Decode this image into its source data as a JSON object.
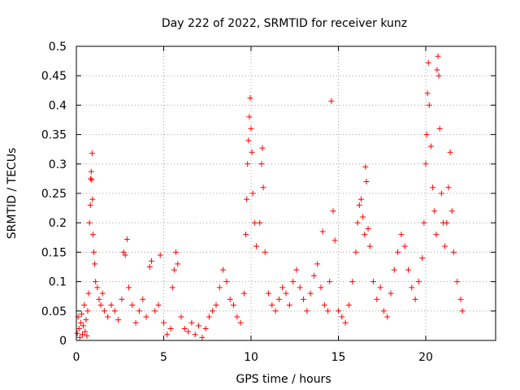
{
  "chart_data": {
    "type": "scatter",
    "title": "Day 222 of 2022, SRMTID for receiver kunz",
    "xlabel": "GPS time / hours",
    "ylabel": "SRMTID / TECUs",
    "xlim": [
      0,
      24
    ],
    "ylim": [
      0,
      0.5
    ],
    "xticks": [
      0,
      5,
      10,
      15,
      20
    ],
    "xtick_labels": [
      "0",
      "5",
      "10",
      "15",
      "20"
    ],
    "yticks": [
      0,
      0.05,
      0.1,
      0.15,
      0.2,
      0.25,
      0.3,
      0.35,
      0.4,
      0.45,
      0.5
    ],
    "ytick_labels": [
      "0",
      "0.05",
      "0.1",
      "0.15",
      "0.2",
      "0.25",
      "0.3",
      "0.35",
      "0.4",
      "0.45",
      "0.5"
    ],
    "grid": true,
    "marker": "+",
    "color": "#ff0000",
    "series": [
      {
        "name": "SRMTID",
        "points": [
          [
            0.05,
            0.012
          ],
          [
            0.1,
            0.04
          ],
          [
            0.15,
            0.02
          ],
          [
            0.2,
            0.005
          ],
          [
            0.25,
            0.03
          ],
          [
            0.3,
            0.045
          ],
          [
            0.35,
            0.01
          ],
          [
            0.4,
            0.025
          ],
          [
            0.45,
            0.06
          ],
          [
            0.5,
            0.015
          ],
          [
            0.55,
            0.035
          ],
          [
            0.6,
            0.008
          ],
          [
            0.65,
            0.05
          ],
          [
            0.7,
            0.08
          ],
          [
            0.75,
            0.2
          ],
          [
            0.8,
            0.23
          ],
          [
            0.82,
            0.275
          ],
          [
            0.85,
            0.287
          ],
          [
            0.88,
            0.273
          ],
          [
            0.9,
            0.318
          ],
          [
            0.92,
            0.24
          ],
          [
            0.95,
            0.18
          ],
          [
            1.0,
            0.15
          ],
          [
            1.05,
            0.13
          ],
          [
            1.1,
            0.1
          ],
          [
            1.2,
            0.09
          ],
          [
            1.3,
            0.07
          ],
          [
            1.4,
            0.06
          ],
          [
            1.5,
            0.08
          ],
          [
            1.6,
            0.05
          ],
          [
            1.8,
            0.04
          ],
          [
            2.0,
            0.06
          ],
          [
            2.2,
            0.05
          ],
          [
            2.4,
            0.035
          ],
          [
            2.6,
            0.07
          ],
          [
            2.7,
            0.15
          ],
          [
            2.8,
            0.145
          ],
          [
            2.9,
            0.172
          ],
          [
            3.0,
            0.09
          ],
          [
            3.2,
            0.06
          ],
          [
            3.4,
            0.03
          ],
          [
            3.6,
            0.05
          ],
          [
            3.8,
            0.07
          ],
          [
            4.0,
            0.04
          ],
          [
            4.2,
            0.125
          ],
          [
            4.3,
            0.135
          ],
          [
            4.5,
            0.05
          ],
          [
            4.7,
            0.06
          ],
          [
            4.8,
            0.145
          ],
          [
            5.0,
            0.03
          ],
          [
            5.2,
            0.01
          ],
          [
            5.4,
            0.02
          ],
          [
            5.5,
            0.09
          ],
          [
            5.6,
            0.12
          ],
          [
            5.7,
            0.15
          ],
          [
            5.8,
            0.13
          ],
          [
            6.0,
            0.04
          ],
          [
            6.2,
            0.02
          ],
          [
            6.4,
            0.015
          ],
          [
            6.6,
            0.03
          ],
          [
            6.8,
            0.01
          ],
          [
            7.0,
            0.025
          ],
          [
            7.2,
            0.005
          ],
          [
            7.4,
            0.02
          ],
          [
            7.6,
            0.04
          ],
          [
            7.8,
            0.05
          ],
          [
            8.0,
            0.06
          ],
          [
            8.2,
            0.09
          ],
          [
            8.4,
            0.12
          ],
          [
            8.6,
            0.1
          ],
          [
            8.8,
            0.07
          ],
          [
            9.0,
            0.06
          ],
          [
            9.2,
            0.04
          ],
          [
            9.4,
            0.03
          ],
          [
            9.6,
            0.08
          ],
          [
            9.7,
            0.18
          ],
          [
            9.75,
            0.24
          ],
          [
            9.8,
            0.3
          ],
          [
            9.85,
            0.34
          ],
          [
            9.9,
            0.38
          ],
          [
            9.95,
            0.412
          ],
          [
            10.0,
            0.36
          ],
          [
            10.05,
            0.32
          ],
          [
            10.1,
            0.25
          ],
          [
            10.2,
            0.2
          ],
          [
            10.3,
            0.16
          ],
          [
            10.5,
            0.2
          ],
          [
            10.6,
            0.3
          ],
          [
            10.65,
            0.327
          ],
          [
            10.7,
            0.26
          ],
          [
            10.8,
            0.15
          ],
          [
            11.0,
            0.08
          ],
          [
            11.2,
            0.06
          ],
          [
            11.4,
            0.05
          ],
          [
            11.6,
            0.07
          ],
          [
            11.8,
            0.09
          ],
          [
            12.0,
            0.08
          ],
          [
            12.2,
            0.06
          ],
          [
            12.4,
            0.1
          ],
          [
            12.6,
            0.12
          ],
          [
            12.8,
            0.09
          ],
          [
            13.0,
            0.07
          ],
          [
            13.2,
            0.05
          ],
          [
            13.4,
            0.08
          ],
          [
            13.6,
            0.11
          ],
          [
            13.8,
            0.13
          ],
          [
            14.0,
            0.09
          ],
          [
            14.1,
            0.185
          ],
          [
            14.2,
            0.06
          ],
          [
            14.4,
            0.05
          ],
          [
            14.5,
            0.1
          ],
          [
            14.6,
            0.407
          ],
          [
            14.7,
            0.22
          ],
          [
            14.8,
            0.17
          ],
          [
            15.0,
            0.05
          ],
          [
            15.2,
            0.04
          ],
          [
            15.4,
            0.03
          ],
          [
            15.6,
            0.06
          ],
          [
            15.8,
            0.1
          ],
          [
            16.0,
            0.15
          ],
          [
            16.1,
            0.2
          ],
          [
            16.2,
            0.23
          ],
          [
            16.3,
            0.24
          ],
          [
            16.4,
            0.21
          ],
          [
            16.5,
            0.18
          ],
          [
            16.55,
            0.295
          ],
          [
            16.6,
            0.27
          ],
          [
            16.7,
            0.19
          ],
          [
            16.8,
            0.16
          ],
          [
            17.0,
            0.1
          ],
          [
            17.2,
            0.07
          ],
          [
            17.4,
            0.09
          ],
          [
            17.6,
            0.05
          ],
          [
            17.8,
            0.04
          ],
          [
            18.0,
            0.08
          ],
          [
            18.2,
            0.12
          ],
          [
            18.4,
            0.15
          ],
          [
            18.6,
            0.18
          ],
          [
            18.8,
            0.16
          ],
          [
            19.0,
            0.12
          ],
          [
            19.2,
            0.09
          ],
          [
            19.4,
            0.07
          ],
          [
            19.6,
            0.1
          ],
          [
            19.8,
            0.14
          ],
          [
            19.9,
            0.2
          ],
          [
            20.0,
            0.3
          ],
          [
            20.05,
            0.35
          ],
          [
            20.1,
            0.42
          ],
          [
            20.15,
            0.472
          ],
          [
            20.2,
            0.4
          ],
          [
            20.3,
            0.33
          ],
          [
            20.4,
            0.26
          ],
          [
            20.5,
            0.22
          ],
          [
            20.6,
            0.18
          ],
          [
            20.65,
            0.46
          ],
          [
            20.7,
            0.483
          ],
          [
            20.75,
            0.45
          ],
          [
            20.8,
            0.36
          ],
          [
            20.9,
            0.25
          ],
          [
            21.0,
            0.2
          ],
          [
            21.1,
            0.16
          ],
          [
            21.2,
            0.2
          ],
          [
            21.3,
            0.26
          ],
          [
            21.4,
            0.32
          ],
          [
            21.5,
            0.22
          ],
          [
            21.6,
            0.15
          ],
          [
            21.8,
            0.1
          ],
          [
            22.0,
            0.07
          ],
          [
            22.1,
            0.05
          ]
        ]
      }
    ]
  }
}
